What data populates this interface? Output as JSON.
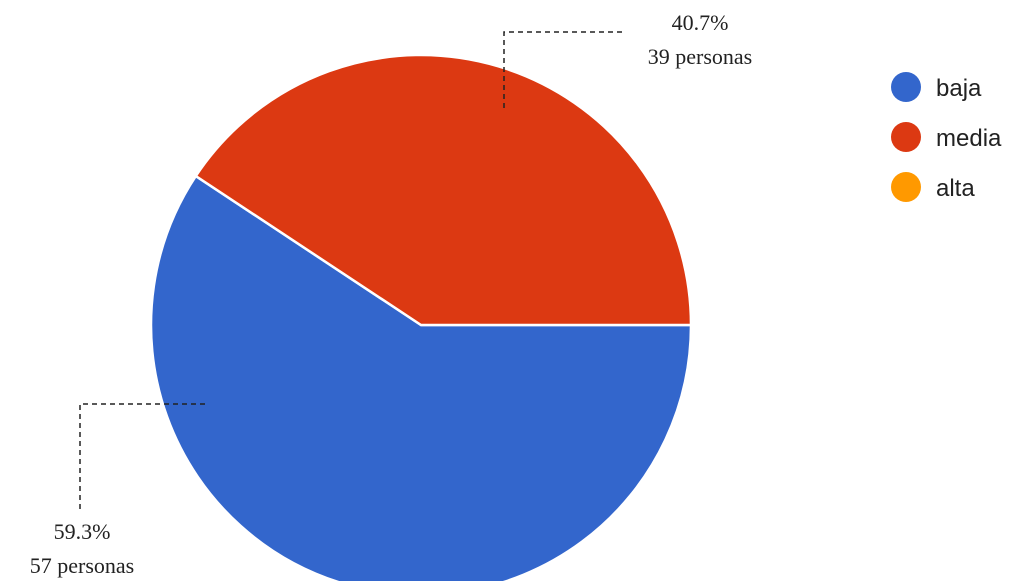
{
  "chart_data": {
    "type": "pie",
    "slices": [
      {
        "name": "baja",
        "percent": 59.3,
        "count": 57,
        "percent_label": "59.3%",
        "count_label": "57 personas",
        "color": "#3366CC"
      },
      {
        "name": "media",
        "percent": 40.7,
        "count": 39,
        "percent_label": "40.7%",
        "count_label": "39 personas",
        "color": "#DC3912"
      },
      {
        "name": "alta",
        "percent": 0,
        "count": 0,
        "percent_label": "",
        "count_label": "",
        "color": "#FF9900"
      }
    ],
    "legend_position": "right",
    "legend": [
      {
        "label": "baja",
        "color": "#3366CC"
      },
      {
        "label": "media",
        "color": "#DC3912"
      },
      {
        "label": "alta",
        "color": "#FF9900"
      }
    ]
  }
}
